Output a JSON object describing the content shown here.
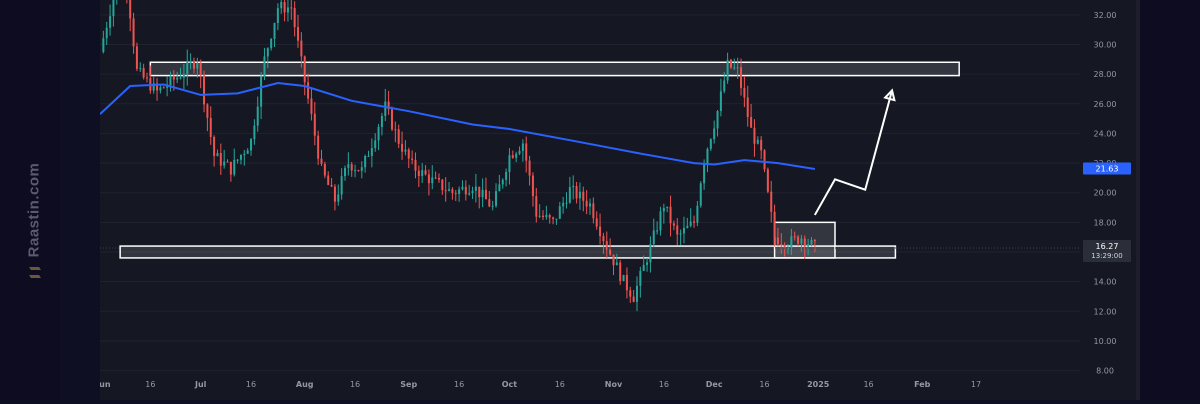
{
  "watermark": {
    "text": "Raastin.com",
    "icon": "raastin-logo-icon"
  },
  "chart_data": {
    "type": "candlestick",
    "title": "",
    "xlabel": "",
    "ylabel": "",
    "ylim": [
      7.5,
      33
    ],
    "y_ticks": [
      "32.00",
      "30.00",
      "28.00",
      "26.00",
      "24.00",
      "22.00",
      "20.00",
      "18.00",
      "16.00",
      "14.00",
      "12.00",
      "10.00",
      "8.00"
    ],
    "x_ticks": [
      "Jun",
      "16",
      "Jul",
      "16",
      "Aug",
      "16",
      "Sep",
      "16",
      "Oct",
      "16",
      "Nov",
      "16",
      "Dec",
      "16",
      "2025",
      "16",
      "Feb",
      "17"
    ],
    "x_range": [
      "2024-06-01",
      "2025-03-20"
    ],
    "last_price": {
      "value": "16.27",
      "countdown": "13:29:00",
      "color": "#2a2e39"
    },
    "ma_value": {
      "value": "21.63",
      "color": "#2962ff"
    },
    "colors": {
      "up": "#26a69a",
      "down": "#ef5350",
      "ma": "#2962ff",
      "zone": "#ffffff"
    },
    "zones": [
      {
        "name": "resistance",
        "from": "2024-06-16",
        "to": "2025-02-12",
        "low": 27.9,
        "high": 28.8
      },
      {
        "name": "support",
        "from": "2024-06-07",
        "to": "2025-01-24",
        "low": 15.6,
        "high": 16.4
      },
      {
        "name": "consolidation",
        "from": "2024-12-19",
        "to": "2025-01-06",
        "low": 15.6,
        "high": 18.0
      }
    ],
    "projection": [
      [
        "2024-12-31",
        18.5
      ],
      [
        "2025-01-06",
        20.9
      ],
      [
        "2025-01-15",
        20.2
      ],
      [
        "2025-01-23",
        26.9
      ]
    ],
    "ma_series": [
      [
        "2024-06-01",
        25.3
      ],
      [
        "2024-06-10",
        27.2
      ],
      [
        "2024-06-20",
        27.3
      ],
      [
        "2024-07-01",
        26.6
      ],
      [
        "2024-07-12",
        26.7
      ],
      [
        "2024-07-24",
        27.4
      ],
      [
        "2024-08-01",
        27.2
      ],
      [
        "2024-08-15",
        26.2
      ],
      [
        "2024-09-01",
        25.5
      ],
      [
        "2024-09-20",
        24.6
      ],
      [
        "2024-10-01",
        24.3
      ],
      [
        "2024-10-20",
        23.5
      ],
      [
        "2024-11-10",
        22.6
      ],
      [
        "2024-11-25",
        22.0
      ],
      [
        "2024-12-01",
        21.9
      ],
      [
        "2024-12-10",
        22.2
      ],
      [
        "2024-12-20",
        22.0
      ],
      [
        "2024-12-31",
        21.6
      ]
    ],
    "price_path": [
      [
        "2024-06-01",
        29.5
      ],
      [
        "2024-06-08",
        36.0
      ],
      [
        "2024-06-12",
        28.2
      ],
      [
        "2024-06-18",
        26.8
      ],
      [
        "2024-06-24",
        27.8
      ],
      [
        "2024-06-30",
        29.0
      ],
      [
        "2024-07-05",
        22.5
      ],
      [
        "2024-07-10",
        21.6
      ],
      [
        "2024-07-16",
        23.5
      ],
      [
        "2024-07-20",
        29.0
      ],
      [
        "2024-07-24",
        32.5
      ],
      [
        "2024-07-28",
        32.5
      ],
      [
        "2024-08-01",
        27.5
      ],
      [
        "2024-08-06",
        21.5
      ],
      [
        "2024-08-10",
        19.5
      ],
      [
        "2024-08-14",
        22.0
      ],
      [
        "2024-08-18",
        21.5
      ],
      [
        "2024-08-25",
        25.8
      ],
      [
        "2024-08-29",
        23.5
      ],
      [
        "2024-09-02",
        21.8
      ],
      [
        "2024-09-08",
        20.8
      ],
      [
        "2024-09-14",
        20.0
      ],
      [
        "2024-09-20",
        20.5
      ],
      [
        "2024-09-26",
        19.0
      ],
      [
        "2024-10-01",
        22.5
      ],
      [
        "2024-10-05",
        23.4
      ],
      [
        "2024-10-09",
        18.6
      ],
      [
        "2024-10-14",
        18.0
      ],
      [
        "2024-10-19",
        20.2
      ],
      [
        "2024-10-25",
        19.2
      ],
      [
        "2024-10-30",
        16.4
      ],
      [
        "2024-11-04",
        14.0
      ],
      [
        "2024-11-07",
        13.0
      ],
      [
        "2024-11-12",
        16.3
      ],
      [
        "2024-11-16",
        19.2
      ],
      [
        "2024-11-20",
        17.0
      ],
      [
        "2024-11-25",
        18.0
      ],
      [
        "2024-11-28",
        22.3
      ],
      [
        "2024-12-02",
        25.5
      ],
      [
        "2024-12-05",
        28.6
      ],
      [
        "2024-12-08",
        28.2
      ],
      [
        "2024-12-12",
        24.2
      ],
      [
        "2024-12-15",
        22.6
      ],
      [
        "2024-12-19",
        17.0
      ],
      [
        "2024-12-23",
        16.6
      ],
      [
        "2024-12-27",
        17.0
      ],
      [
        "2024-12-31",
        16.3
      ]
    ]
  }
}
